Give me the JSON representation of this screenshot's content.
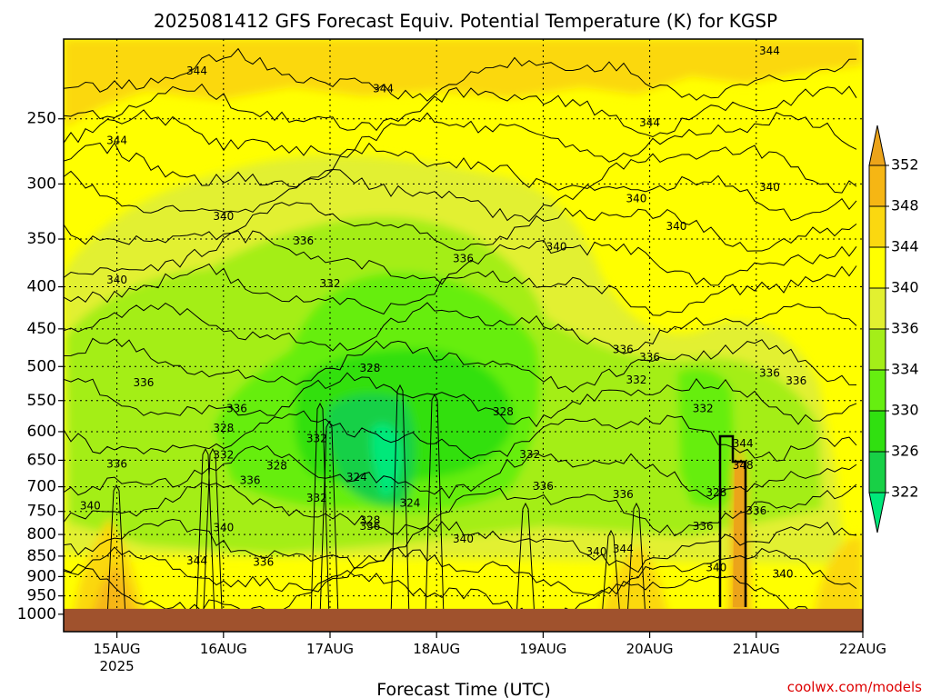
{
  "chart_data": {
    "type": "heatmap",
    "title": "2025081412 GFS Forecast Equiv. Potential Temperature (K) for KGSP",
    "xlabel": "Forecast Time (UTC)",
    "ylabel": "",
    "credit": "coolwx.com/models",
    "x_range": [
      "2025-08-14T12",
      "2025-08-22T00"
    ],
    "x_ticks": [
      {
        "label": "15AUG",
        "sub": "2025",
        "time": "2025-08-15T00"
      },
      {
        "label": "16AUG",
        "sub": "",
        "time": "2025-08-16T00"
      },
      {
        "label": "17AUG",
        "sub": "",
        "time": "2025-08-17T00"
      },
      {
        "label": "18AUG",
        "sub": "",
        "time": "2025-08-18T00"
      },
      {
        "label": "19AUG",
        "sub": "",
        "time": "2025-08-19T00"
      },
      {
        "label": "20AUG",
        "sub": "",
        "time": "2025-08-20T00"
      },
      {
        "label": "21AUG",
        "sub": "",
        "time": "2025-08-21T00"
      },
      {
        "label": "22AUG",
        "sub": "",
        "time": "2025-08-22T00"
      }
    ],
    "y_axis": {
      "units": "hPa",
      "scale": "log",
      "reversed": true,
      "range": [
        1050,
        200
      ],
      "ticks": [
        250,
        300,
        350,
        400,
        450,
        500,
        550,
        600,
        650,
        700,
        750,
        800,
        850,
        900,
        950,
        1000
      ]
    },
    "grid": true,
    "colorbar": {
      "position": "right",
      "levels": [
        322,
        326,
        330,
        334,
        336,
        340,
        344,
        348,
        352
      ],
      "colors": [
        "#00e87a",
        "#18d046",
        "#30e010",
        "#66ee10",
        "#a4ee18",
        "#e2f030",
        "#ffff00",
        "#fbd810",
        "#f6b614",
        "#eca41a"
      ]
    },
    "ground_color": "#a0522d",
    "contour_labels": [
      {
        "label": "344",
        "time": "2025-08-15T18",
        "p": 219
      },
      {
        "label": "344",
        "time": "2025-08-17T12",
        "p": 230
      },
      {
        "label": "344",
        "time": "2025-08-20T00",
        "p": 253
      },
      {
        "label": "344",
        "time": "2025-08-15T00",
        "p": 266
      },
      {
        "label": "344",
        "time": "2025-08-21T03",
        "p": 207
      },
      {
        "label": "340",
        "time": "2025-08-16T00",
        "p": 329
      },
      {
        "label": "340",
        "time": "2025-08-15T00",
        "p": 393
      },
      {
        "label": "340",
        "time": "2025-08-19T03",
        "p": 358
      },
      {
        "label": "340",
        "time": "2025-08-19T21",
        "p": 313
      },
      {
        "label": "340",
        "time": "2025-08-20T06",
        "p": 338
      },
      {
        "label": "340",
        "time": "2025-08-21T03",
        "p": 303
      },
      {
        "label": "336",
        "time": "2025-08-16T18",
        "p": 352
      },
      {
        "label": "336",
        "time": "2025-08-18T06",
        "p": 370
      },
      {
        "label": "336",
        "time": "2025-08-15T06",
        "p": 524
      },
      {
        "label": "336",
        "time": "2025-08-16T03",
        "p": 563
      },
      {
        "label": "336",
        "time": "2025-08-15T00",
        "p": 658
      },
      {
        "label": "336",
        "time": "2025-08-19T18",
        "p": 477
      },
      {
        "label": "336",
        "time": "2025-08-20T00",
        "p": 488
      },
      {
        "label": "336",
        "time": "2025-08-21T03",
        "p": 510
      },
      {
        "label": "336",
        "time": "2025-08-21T09",
        "p": 521
      },
      {
        "label": "336",
        "time": "2025-08-16T06",
        "p": 688
      },
      {
        "label": "336",
        "time": "2025-08-19T00",
        "p": 700
      },
      {
        "label": "336",
        "time": "2025-08-19T18",
        "p": 716
      },
      {
        "label": "336",
        "time": "2025-08-17T09",
        "p": 783
      },
      {
        "label": "336",
        "time": "2025-08-16T09",
        "p": 866
      },
      {
        "label": "336",
        "time": "2025-08-20T12",
        "p": 783
      },
      {
        "label": "336",
        "time": "2025-08-21T00",
        "p": 750
      },
      {
        "label": "332",
        "time": "2025-08-17T00",
        "p": 397
      },
      {
        "label": "332",
        "time": "2025-08-16T00",
        "p": 641
      },
      {
        "label": "332",
        "time": "2025-08-16T21",
        "p": 612
      },
      {
        "label": "332",
        "time": "2025-08-16T21",
        "p": 723
      },
      {
        "label": "332",
        "time": "2025-08-18T21",
        "p": 640
      },
      {
        "label": "332",
        "time": "2025-08-19T21",
        "p": 520
      },
      {
        "label": "332",
        "time": "2025-08-20T12",
        "p": 563
      },
      {
        "label": "328",
        "time": "2025-08-17T09",
        "p": 503
      },
      {
        "label": "328",
        "time": "2025-08-18T15",
        "p": 568
      },
      {
        "label": "328",
        "time": "2025-08-16T00",
        "p": 595
      },
      {
        "label": "328",
        "time": "2025-08-16T12",
        "p": 661
      },
      {
        "label": "328",
        "time": "2025-08-17T09",
        "p": 770
      },
      {
        "label": "328",
        "time": "2025-08-20T15",
        "p": 712
      },
      {
        "label": "324",
        "time": "2025-08-17T06",
        "p": 682
      },
      {
        "label": "324",
        "time": "2025-08-17T18",
        "p": 734
      },
      {
        "label": "340",
        "time": "2025-08-14T18",
        "p": 739
      },
      {
        "label": "340",
        "time": "2025-08-16T00",
        "p": 786
      },
      {
        "label": "340",
        "time": "2025-08-18T06",
        "p": 811
      },
      {
        "label": "340",
        "time": "2025-08-19T12",
        "p": 840
      },
      {
        "label": "340",
        "time": "2025-08-20T15",
        "p": 879
      },
      {
        "label": "340",
        "time": "2025-08-21T06",
        "p": 894
      },
      {
        "label": "344",
        "time": "2025-08-15T18",
        "p": 862
      },
      {
        "label": "344",
        "time": "2025-08-19T18",
        "p": 834
      },
      {
        "label": "344",
        "time": "2025-08-20T21",
        "p": 621
      },
      {
        "label": "348",
        "time": "2025-08-20T21",
        "p": 660
      }
    ]
  }
}
